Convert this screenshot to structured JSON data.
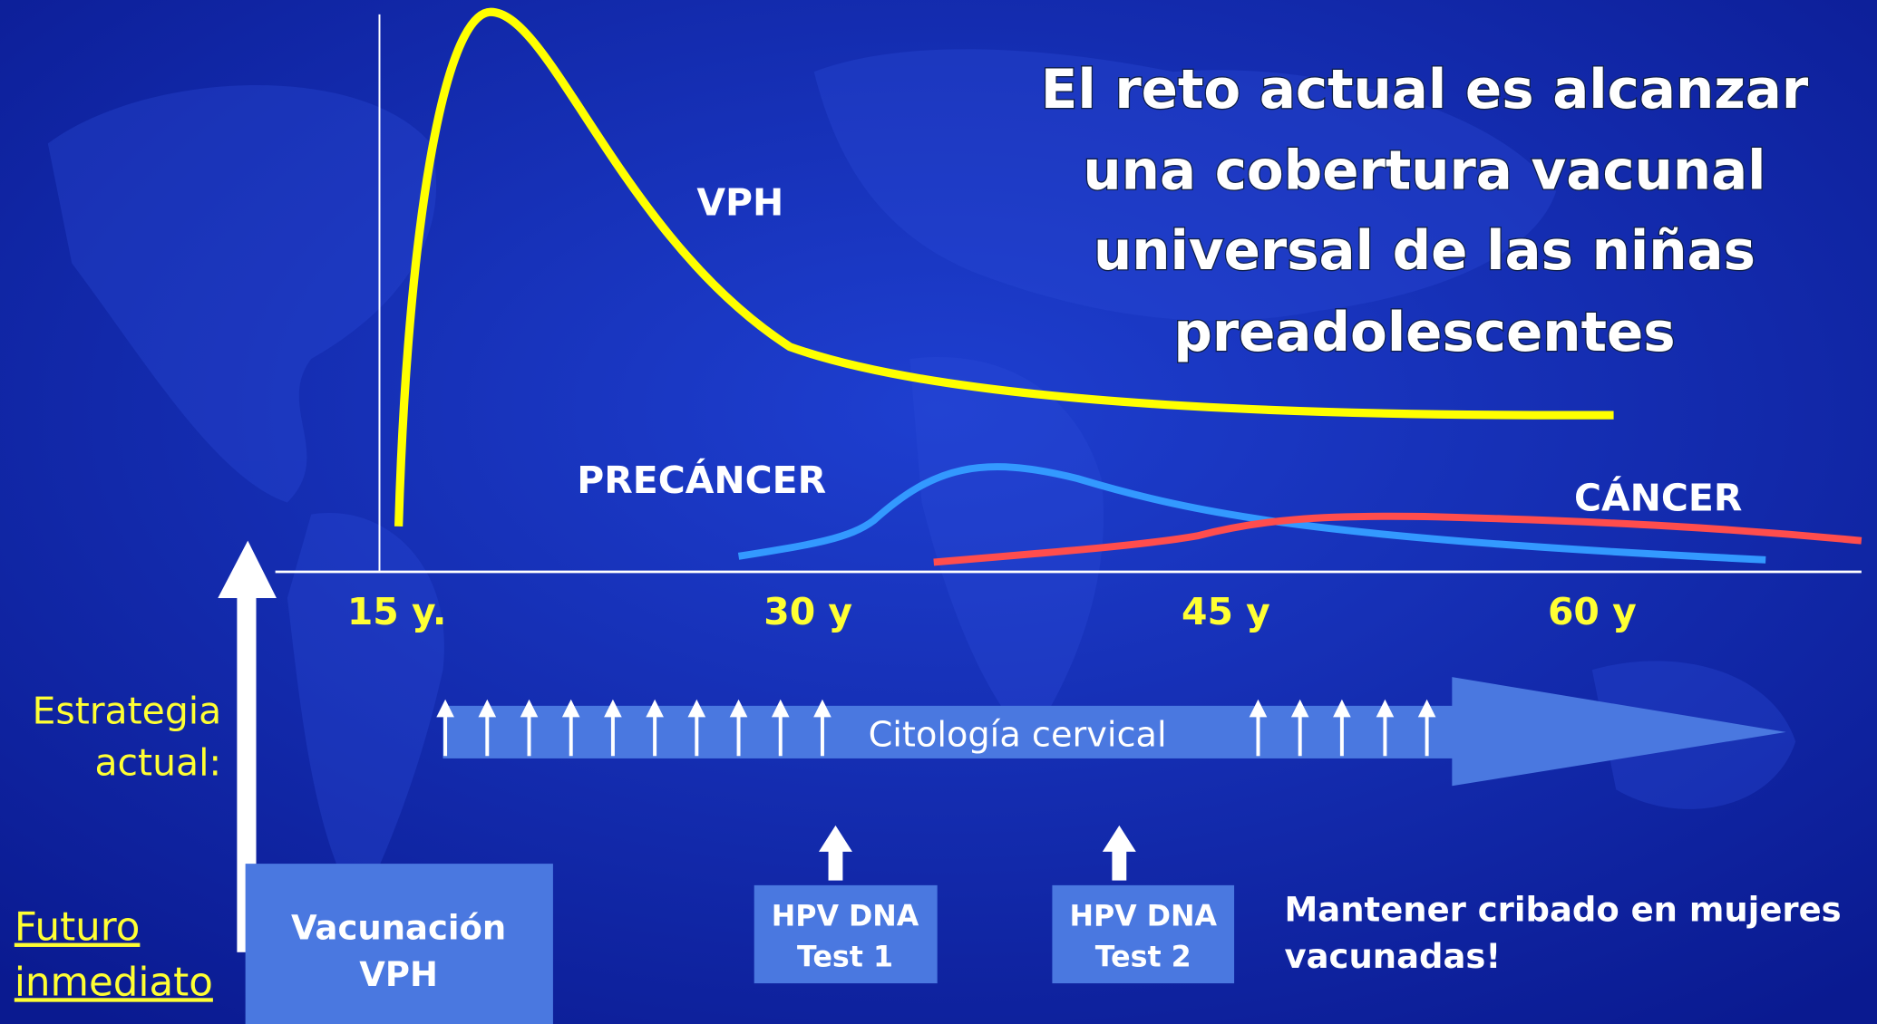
{
  "title": {
    "lines": [
      "El reto actual es alcanzar",
      "una cobertura vacunal",
      "universal de las niñas",
      "preadolescentes"
    ]
  },
  "curves": [
    {
      "label": "VPH"
    },
    {
      "label": "PRECÁNCER"
    },
    {
      "label": "CÁNCER"
    }
  ],
  "axis_labels": [
    "15 y.",
    "30 y",
    "45 y",
    "60 y"
  ],
  "strategy": {
    "label_lines": [
      "Estrategia",
      "actual:"
    ],
    "bar": "Citología cervical"
  },
  "future": {
    "label_lines": [
      "Futuro",
      "inmediato"
    ],
    "vaccination_lines": [
      "Vacunación",
      "VPH"
    ],
    "tests": [
      [
        "HPV DNA",
        "Test 1"
      ],
      [
        "HPV DNA",
        "Test 2"
      ]
    ],
    "note_lines": [
      "Mantener cribado en mujeres",
      "vacunadas!"
    ]
  }
}
